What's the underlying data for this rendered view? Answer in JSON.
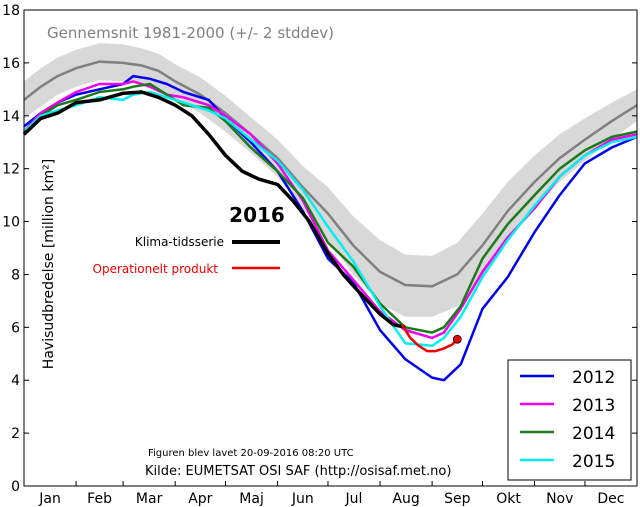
{
  "chart_data": {
    "type": "line",
    "title": "Gennemsnit 1981-2000 (+/- 2 stddev)",
    "ylabel": "Havisudbredelse [million km²]",
    "xlabel": "",
    "ylim": [
      0,
      18
    ],
    "xlim": [
      0,
      365
    ],
    "yticks": [
      0,
      2,
      4,
      6,
      8,
      10,
      12,
      14,
      16,
      18
    ],
    "month_labels": [
      "Jan",
      "Feb",
      "Mar",
      "Apr",
      "Maj",
      "Jun",
      "Jul",
      "Aug",
      "Sep",
      "Okt",
      "Nov",
      "Dec"
    ],
    "month_starts": [
      0,
      31,
      59,
      90,
      120,
      151,
      181,
      212,
      243,
      273,
      304,
      334,
      365
    ],
    "colors": {
      "band": "#d8d8d8",
      "mean": "#808080",
      "2012": "#0000ee",
      "2013": "#ee00ee",
      "2014": "#1a7a1a",
      "2015": "#00eeee",
      "climate": "#000000",
      "operational": "#ee0000"
    },
    "mean": {
      "x": [
        0,
        10,
        20,
        31,
        45,
        59,
        70,
        80,
        90,
        105,
        120,
        135,
        151,
        166,
        181,
        196,
        212,
        227,
        243,
        258,
        273,
        288,
        304,
        319,
        334,
        350,
        365
      ],
      "y": [
        14.6,
        15.1,
        15.5,
        15.8,
        16.05,
        16.0,
        15.9,
        15.7,
        15.3,
        14.8,
        14.1,
        13.3,
        12.4,
        11.3,
        10.3,
        9.1,
        8.1,
        7.6,
        7.55,
        8.0,
        9.1,
        10.4,
        11.5,
        12.4,
        13.1,
        13.8,
        14.4
      ]
    },
    "band": {
      "upper": [
        15.3,
        15.8,
        16.2,
        16.5,
        16.75,
        16.7,
        16.55,
        16.35,
        15.95,
        15.45,
        14.75,
        13.95,
        13.1,
        12.1,
        11.3,
        10.2,
        9.3,
        8.75,
        8.7,
        9.2,
        10.3,
        11.5,
        12.5,
        13.3,
        13.9,
        14.5,
        15.0
      ],
      "lower": [
        13.9,
        14.35,
        14.8,
        15.1,
        15.35,
        15.3,
        15.2,
        15.0,
        14.65,
        14.1,
        13.4,
        12.6,
        11.7,
        10.5,
        9.3,
        8.0,
        6.9,
        6.4,
        6.4,
        6.8,
        7.9,
        9.3,
        10.5,
        11.5,
        12.3,
        13.1,
        13.8
      ]
    },
    "series": [
      {
        "name": "2012",
        "x": [
          0,
          10,
          20,
          31,
          45,
          59,
          65,
          75,
          85,
          95,
          110,
          120,
          135,
          151,
          166,
          181,
          196,
          212,
          227,
          243,
          250,
          260,
          273,
          288,
          304,
          319,
          334,
          350,
          365
        ],
        "y": [
          13.6,
          14.1,
          14.5,
          14.8,
          15.0,
          15.2,
          15.5,
          15.4,
          15.2,
          14.9,
          14.6,
          13.9,
          13.0,
          11.9,
          10.4,
          8.6,
          7.7,
          5.9,
          4.8,
          4.1,
          4.0,
          4.6,
          6.7,
          7.9,
          9.6,
          11.0,
          12.2,
          12.8,
          13.2
        ]
      },
      {
        "name": "2013",
        "x": [
          0,
          10,
          20,
          31,
          45,
          59,
          65,
          75,
          85,
          95,
          110,
          120,
          135,
          151,
          166,
          181,
          196,
          212,
          227,
          243,
          250,
          260,
          273,
          288,
          304,
          319,
          334,
          350,
          365
        ],
        "y": [
          13.4,
          14.1,
          14.5,
          14.9,
          15.2,
          15.2,
          15.3,
          15.1,
          14.8,
          14.7,
          14.4,
          14.0,
          13.3,
          12.2,
          10.8,
          8.9,
          7.8,
          6.6,
          5.9,
          5.6,
          5.8,
          6.7,
          8.1,
          9.4,
          10.5,
          11.7,
          12.5,
          13.1,
          13.3
        ]
      },
      {
        "name": "2014",
        "x": [
          0,
          10,
          20,
          31,
          45,
          59,
          65,
          75,
          85,
          95,
          110,
          120,
          135,
          151,
          166,
          181,
          196,
          212,
          227,
          243,
          250,
          260,
          273,
          288,
          304,
          319,
          334,
          350,
          365
        ],
        "y": [
          13.3,
          14.0,
          14.4,
          14.6,
          14.9,
          15.0,
          15.1,
          15.2,
          14.8,
          14.4,
          14.3,
          13.8,
          12.8,
          11.9,
          10.9,
          9.2,
          8.3,
          6.9,
          6.0,
          5.8,
          6.0,
          6.8,
          8.6,
          9.9,
          11.0,
          12.0,
          12.7,
          13.2,
          13.4
        ]
      },
      {
        "name": "2015",
        "x": [
          0,
          10,
          20,
          31,
          45,
          59,
          65,
          75,
          85,
          95,
          110,
          120,
          135,
          151,
          166,
          181,
          196,
          212,
          227,
          243,
          250,
          260,
          273,
          288,
          304,
          319,
          334,
          350,
          365
        ],
        "y": [
          13.4,
          14.0,
          14.2,
          14.4,
          14.7,
          14.6,
          14.8,
          14.9,
          14.7,
          14.5,
          14.2,
          13.9,
          13.1,
          12.3,
          11.2,
          9.8,
          8.5,
          6.8,
          5.4,
          5.3,
          5.6,
          6.4,
          7.9,
          9.3,
          10.6,
          11.7,
          12.5,
          13.0,
          13.2
        ]
      }
    ],
    "year_2016": {
      "label": "2016",
      "climate_label": "Klima-tidsserie",
      "operational_label": "Operationelt produkt",
      "climate": {
        "x": [
          0,
          10,
          20,
          31,
          45,
          59,
          70,
          80,
          90,
          100,
          110,
          120,
          130,
          140,
          151,
          160,
          170,
          181,
          190,
          200,
          212,
          220,
          227
        ],
        "y": [
          13.3,
          13.9,
          14.1,
          14.5,
          14.6,
          14.85,
          14.9,
          14.7,
          14.4,
          14.0,
          13.3,
          12.5,
          11.9,
          11.6,
          11.4,
          10.8,
          10.0,
          8.8,
          8.0,
          7.3,
          6.5,
          6.1,
          6.0
        ]
      },
      "operational": {
        "x": [
          225,
          230,
          235,
          240,
          245,
          250,
          255,
          258
        ],
        "y": [
          6.1,
          5.6,
          5.3,
          5.1,
          5.1,
          5.2,
          5.35,
          5.55
        ]
      },
      "current_point": {
        "x": 258,
        "y": 5.55
      }
    },
    "legend": {
      "placement": "bottom-right",
      "entries": [
        "2012",
        "2013",
        "2014",
        "2015"
      ]
    },
    "annotations": [
      "Figuren blev lavet 20-09-2016 08:20 UTC",
      "Kilde: EUMETSAT OSI SAF (http://osisaf.met.no)"
    ]
  }
}
